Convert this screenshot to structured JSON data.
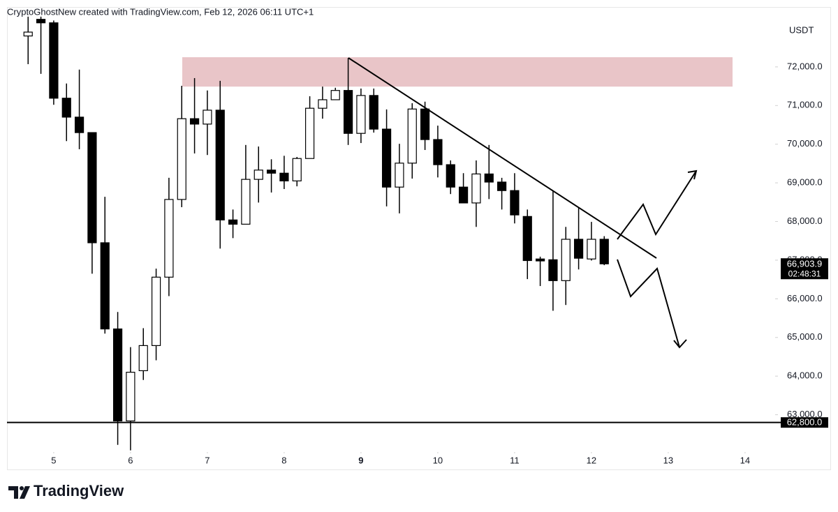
{
  "header": {
    "title": "CryptoGhostNew created with TradingView.com, Feb 12, 2026 06:11 UTC+1"
  },
  "footer": {
    "brand": "TradingView"
  },
  "chart_data": {
    "type": "candlestick",
    "currency": "USDT",
    "up_color": "#ffffff",
    "down_color": "#000000",
    "open": [
      72800,
      73230,
      73140,
      71190,
      70700,
      70300,
      67450,
      65220,
      62840,
      64140,
      64790,
      66560,
      68570,
      70660,
      70520,
      70880,
      68040,
      67930,
      69090,
      69330,
      69250,
      69050,
      69630,
      70930,
      71150,
      71390,
      70280,
      71260,
      70390,
      68890,
      69510,
      70910,
      70120,
      69470,
      68890,
      68480,
      69230,
      69020,
      68800,
      68130,
      67030,
      67010,
      66470,
      67540,
      67030,
      67540
    ],
    "high": [
      73300,
      73300,
      73200,
      71570,
      71930,
      70300,
      68640,
      65660,
      64750,
      65240,
      66780,
      69130,
      71510,
      71710,
      71390,
      71640,
      68310,
      69980,
      69940,
      69610,
      69700,
      69670,
      71240,
      71490,
      71460,
      72230,
      71440,
      71440,
      70900,
      70010,
      71060,
      71100,
      70480,
      69580,
      69250,
      69580,
      69980,
      69130,
      69250,
      68310,
      67090,
      68800,
      67860,
      68350,
      67990,
      67620
    ],
    "low": [
      72070,
      71820,
      71020,
      70080,
      69870,
      66650,
      65100,
      62220,
      62080,
      63900,
      64410,
      66070,
      68370,
      69760,
      69720,
      67300,
      67570,
      67920,
      68490,
      68750,
      68840,
      68910,
      69630,
      70660,
      71150,
      69980,
      70030,
      70300,
      68390,
      68210,
      69110,
      69850,
      69140,
      68710,
      68480,
      67860,
      68580,
      68310,
      67950,
      66510,
      66330,
      65690,
      65840,
      66760,
      66990,
      66870
    ],
    "close": [
      72900,
      73140,
      71190,
      70700,
      70300,
      67450,
      65220,
      62840,
      64100,
      64790,
      66560,
      68570,
      70660,
      70520,
      70880,
      68040,
      67930,
      69090,
      69330,
      69250,
      69050,
      69630,
      70930,
      71150,
      71390,
      70280,
      71260,
      70390,
      68890,
      69510,
      70910,
      70120,
      69470,
      68890,
      68480,
      69230,
      69020,
      68800,
      68170,
      66990,
      66980,
      66470,
      67540,
      67050,
      67540,
      66903.9
    ],
    "xlim": [
      -1.65,
      58.35
    ],
    "xticks": [
      {
        "value": 2,
        "label": "5"
      },
      {
        "value": 8,
        "label": "6"
      },
      {
        "value": 14,
        "label": "7"
      },
      {
        "value": 20,
        "label": "8"
      },
      {
        "value": 26,
        "label": "9",
        "bold": true
      },
      {
        "value": 32,
        "label": "10"
      },
      {
        "value": 38,
        "label": "11"
      },
      {
        "value": 44,
        "label": "12"
      },
      {
        "value": 50,
        "label": "13"
      },
      {
        "value": 56,
        "label": "14"
      }
    ],
    "ylim": [
      62000,
      73550
    ],
    "yticks": [
      {
        "value": 63000,
        "label": "63,000.0"
      },
      {
        "value": 64000,
        "label": "64,000.0"
      },
      {
        "value": 65000,
        "label": "65,000.0"
      },
      {
        "value": 66000,
        "label": "66,000.0"
      },
      {
        "value": 67000,
        "label": "67,000.0"
      },
      {
        "value": 68000,
        "label": "68,000.0"
      },
      {
        "value": 69000,
        "label": "69,000.0"
      },
      {
        "value": 70000,
        "label": "70,000.0"
      },
      {
        "value": 71000,
        "label": "71,000.0"
      },
      {
        "value": 72000,
        "label": "72,000.0"
      }
    ],
    "zone": {
      "from": 71490,
      "to": 72250,
      "color": "#e9c5c8"
    },
    "hline": {
      "value": 62800,
      "label": "62,800.0"
    },
    "last_price": {
      "value": 66903.9,
      "label": "66,903.9",
      "countdown": "02:48:31"
    }
  }
}
